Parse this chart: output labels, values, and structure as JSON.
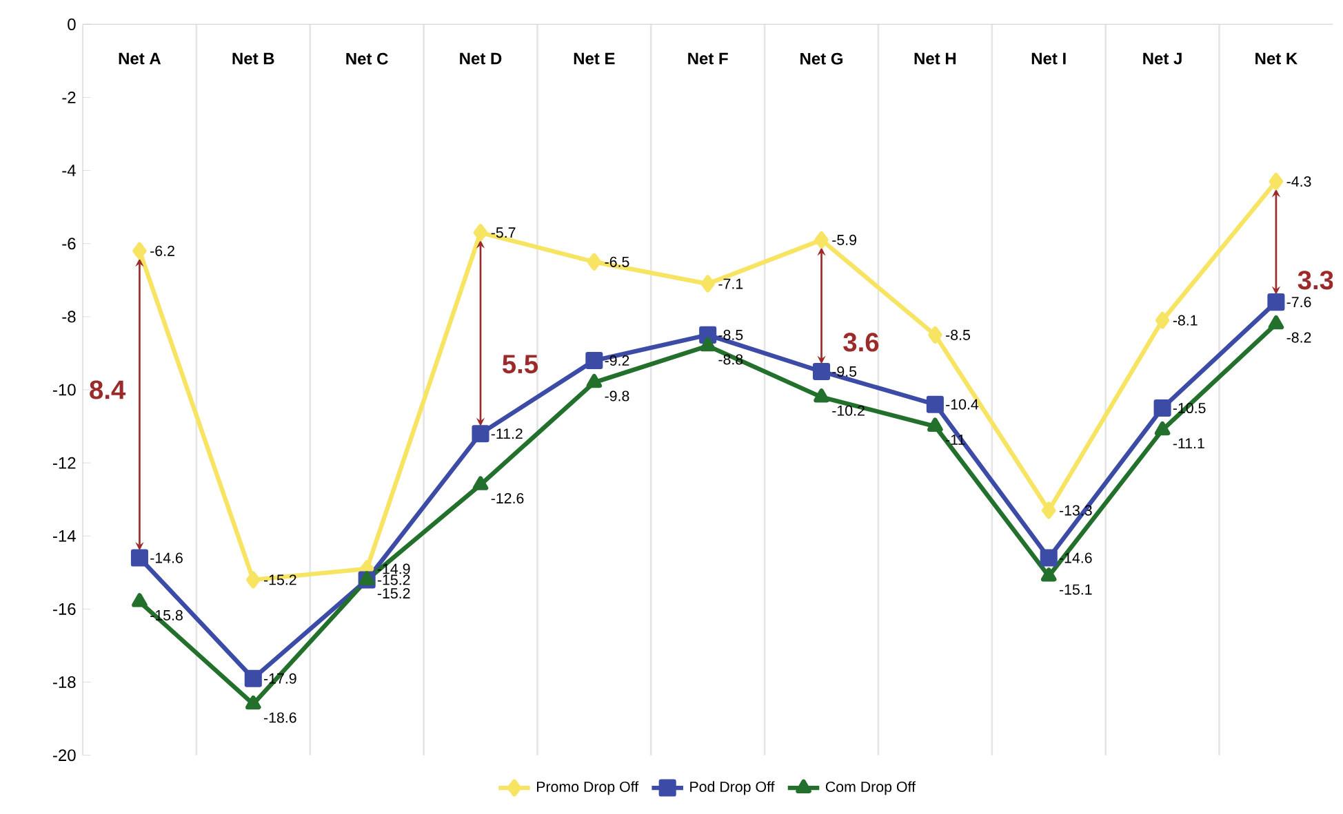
{
  "chart_data": {
    "type": "line",
    "categories": [
      "Net A",
      "Net B",
      "Net C",
      "Net D",
      "Net E",
      "Net F",
      "Net G",
      "Net H",
      "Net I",
      "Net J",
      "Net K"
    ],
    "series": [
      {
        "name": "Promo Drop Off",
        "color": "#f7e463",
        "marker": "diamond",
        "values": [
          -6.2,
          -15.2,
          -14.9,
          -5.7,
          -6.5,
          -7.1,
          -5.9,
          -8.5,
          -13.3,
          -8.1,
          -4.3
        ]
      },
      {
        "name": "Pod Drop Off",
        "color": "#3b4ba6",
        "marker": "square",
        "values": [
          -14.6,
          -17.9,
          -15.2,
          -11.2,
          -9.2,
          -8.5,
          -9.5,
          -10.4,
          -14.6,
          -10.5,
          -7.6
        ]
      },
      {
        "name": "Com Drop Off",
        "color": "#22702c",
        "marker": "triangle",
        "values": [
          -15.8,
          -18.6,
          -15.2,
          -12.6,
          -9.8,
          -8.8,
          -10.2,
          -11,
          -15.1,
          -11.1,
          -8.2
        ]
      }
    ],
    "ylim": [
      -20,
      0
    ],
    "yticks": [
      -20,
      -18,
      -16,
      -14,
      -12,
      -10,
      -8,
      -6,
      -4,
      -2,
      0
    ],
    "grid": "x",
    "legend": "bottom",
    "data_labels": true,
    "line_style": "solid",
    "annotations": [
      "8.4",
      "5.5",
      "3.6",
      "3.3"
    ]
  }
}
